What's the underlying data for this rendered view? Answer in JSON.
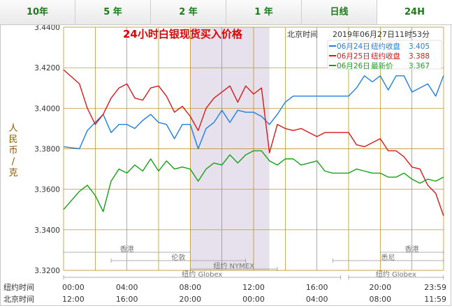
{
  "tabs": [
    {
      "label": "10年",
      "active": false
    },
    {
      "label": "5 年",
      "active": false
    },
    {
      "label": "2 年",
      "active": false
    },
    {
      "label": "1 年",
      "active": false
    },
    {
      "label": "日线",
      "active": false
    },
    {
      "label": "24H",
      "active": true
    }
  ],
  "colors": {
    "grid": "#b8860b",
    "highlight_band": "#e6e1ec",
    "series_blue": "#1e7fe0",
    "series_red": "#d51a1a",
    "series_green": "#15a015",
    "title": "#e00000",
    "axis_text": "#333333",
    "ylabel": "#8b5a00"
  },
  "chart_data": {
    "type": "line",
    "title": "24小时白银现货买入价格",
    "timestamp_label": "北京时间",
    "timestamp": "2019年06月27日11时53分",
    "ylabel": "人民币/克",
    "ylim": [
      3.32,
      3.44
    ],
    "y_ticks": [
      "3.4400",
      "3.4200",
      "3.4000",
      "3.3800",
      "3.3600",
      "3.3400",
      "3.3200"
    ],
    "x_rows": [
      {
        "label": "纽约时间",
        "ticks": [
          "00:00",
          "04:00",
          "08:00",
          "12:00",
          "16:00",
          "20:00",
          "23:59"
        ]
      },
      {
        "label": "北京时间",
        "ticks": [
          "12:00",
          "16:00",
          "20:00",
          "00:00",
          "04:00",
          "08:00",
          "11:59"
        ]
      }
    ],
    "highlight_ny_hours": [
      8,
      13
    ],
    "market_sessions": [
      {
        "name": "香港",
        "start": 0,
        "end": 8
      },
      {
        "name": "伦敦",
        "start": 3,
        "end": 11.5
      },
      {
        "name": "纽约 NYMEX",
        "start": 8,
        "end": 13.5
      },
      {
        "name": "纽约 Globex",
        "start": 0,
        "end": 17.5
      },
      {
        "name": "纽约 Globex",
        "start": 18,
        "end": 23.99
      },
      {
        "name": "香港",
        "start": 20,
        "end": 23.99
      },
      {
        "name": "悉尼",
        "start": 17,
        "end": 23.99
      }
    ],
    "legend": [
      {
        "date": "06月24日",
        "desc": "纽约收盘",
        "value": "3.405"
      },
      {
        "date": "06月25日",
        "desc": "纽约收盘",
        "value": "3.388"
      },
      {
        "date": "06月26日",
        "desc": "最新价",
        "value": "3.367"
      }
    ],
    "x_hours": [
      0,
      1,
      1.5,
      2,
      2.5,
      3,
      3.5,
      4,
      4.5,
      5,
      5.5,
      6,
      6.5,
      7,
      7.5,
      8,
      8.5,
      9,
      9.5,
      10,
      10.5,
      11,
      11.5,
      12,
      12.5,
      13,
      13.5,
      14,
      14.5,
      15,
      15.5,
      16,
      16.5,
      17,
      17.5,
      18,
      18.5,
      19,
      19.5,
      20,
      20.5,
      21,
      21.5,
      22,
      22.5,
      23,
      23.5,
      23.99
    ],
    "series": [
      {
        "name": "06月24日",
        "color_key": "series_blue",
        "values": [
          3.381,
          3.38,
          3.389,
          3.393,
          3.397,
          3.388,
          3.392,
          3.392,
          3.39,
          3.394,
          3.397,
          3.393,
          3.392,
          3.385,
          3.392,
          3.392,
          3.38,
          3.39,
          3.393,
          3.399,
          3.393,
          3.399,
          3.398,
          3.398,
          3.396,
          3.392,
          3.397,
          3.403,
          3.406,
          3.406,
          3.406,
          3.406,
          3.406,
          3.406,
          3.406,
          3.406,
          3.41,
          3.416,
          3.413,
          3.416,
          3.409,
          3.416,
          3.416,
          3.408,
          3.41,
          3.412,
          3.406,
          3.416
        ]
      },
      {
        "name": "06月25日",
        "color_key": "series_red",
        "values": [
          3.419,
          3.412,
          3.4,
          3.392,
          3.397,
          3.405,
          3.41,
          3.412,
          3.405,
          3.404,
          3.41,
          3.411,
          3.406,
          3.398,
          3.401,
          3.396,
          3.389,
          3.4,
          3.405,
          3.408,
          3.411,
          3.403,
          3.411,
          3.407,
          3.41,
          3.378,
          3.392,
          3.39,
          3.389,
          3.39,
          3.388,
          3.386,
          3.388,
          3.388,
          3.388,
          3.388,
          3.382,
          3.381,
          3.383,
          3.385,
          3.379,
          3.379,
          3.376,
          3.371,
          3.37,
          3.362,
          3.358,
          3.347
        ]
      },
      {
        "name": "06月26日",
        "color_key": "series_green",
        "values": [
          3.35,
          3.359,
          3.362,
          3.357,
          3.349,
          3.364,
          3.37,
          3.368,
          3.372,
          3.369,
          3.375,
          3.369,
          3.374,
          3.37,
          3.371,
          3.37,
          3.364,
          3.37,
          3.373,
          3.372,
          3.377,
          3.373,
          3.377,
          3.379,
          3.379,
          3.374,
          3.372,
          3.375,
          3.375,
          3.372,
          3.373,
          3.374,
          3.369,
          3.368,
          3.368,
          3.368,
          3.37,
          3.369,
          3.368,
          3.368,
          3.366,
          3.366,
          3.368,
          3.365,
          3.363,
          3.365,
          3.364,
          3.366
        ]
      }
    ]
  }
}
